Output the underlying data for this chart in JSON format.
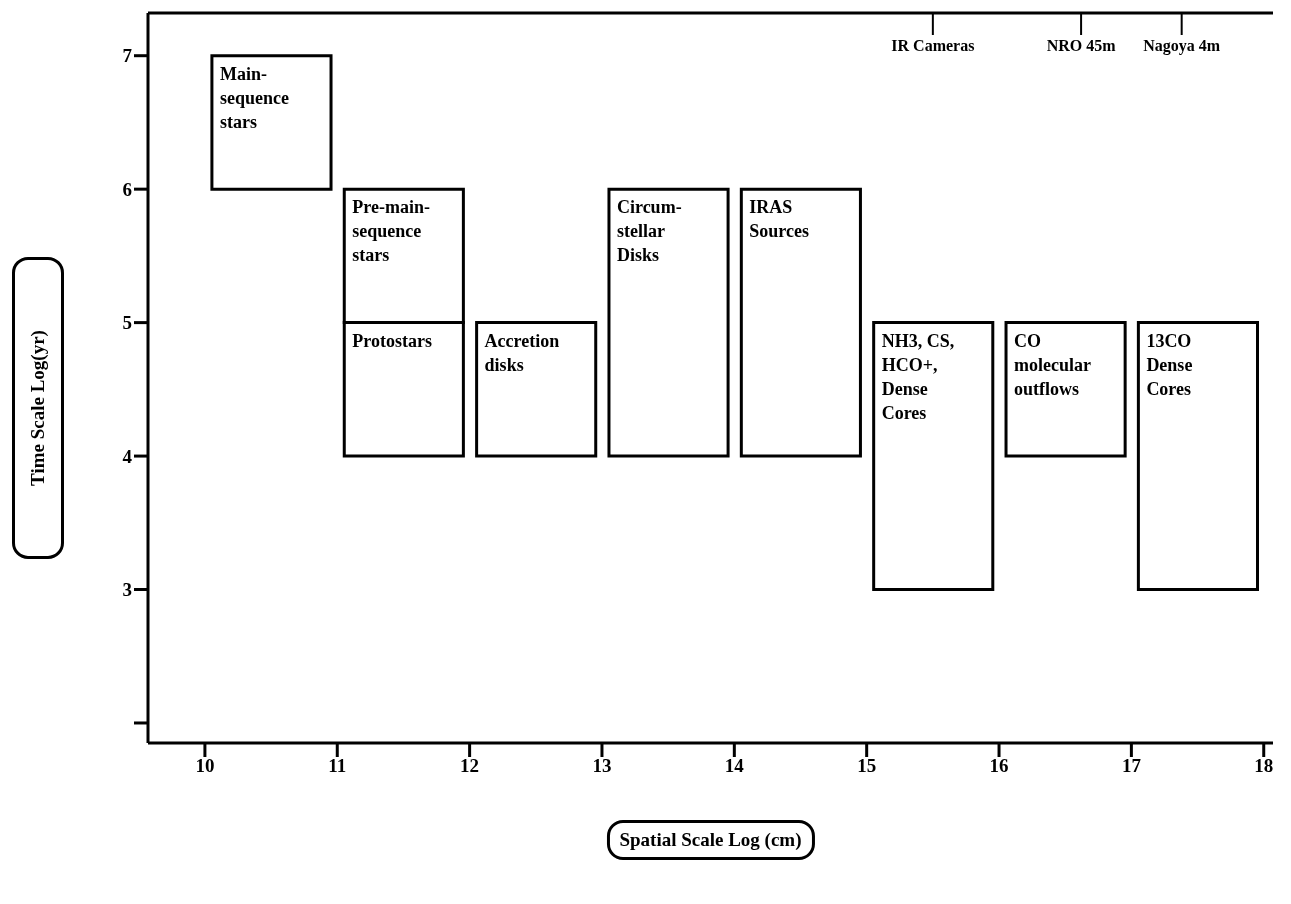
{
  "chart_data": {
    "type": "bar",
    "xlabel": "Spatial Scale  Log (cm)",
    "ylabel": "Time Scale Log(yr)",
    "x": [
      10.5,
      11.5,
      12.5,
      13.5,
      14.5,
      15.5,
      16.5,
      17.5
    ],
    "series": [
      {
        "name": "Main-sequence stars",
        "color": "#000000",
        "values": [
          1,
          null,
          null,
          null,
          null,
          null,
          null,
          null
        ],
        "base": [
          6,
          null,
          null,
          null,
          null,
          null,
          null,
          null
        ]
      },
      {
        "name": "Pre-main-sequence stars",
        "color": "#000000",
        "values": [
          null,
          1,
          null,
          null,
          null,
          null,
          null,
          null
        ],
        "base": [
          null,
          5,
          null,
          null,
          null,
          null,
          null,
          null
        ]
      },
      {
        "name": "Protostars",
        "color": "#000000",
        "values": [
          null,
          1,
          null,
          null,
          null,
          null,
          null,
          null
        ],
        "base": [
          null,
          4,
          null,
          null,
          null,
          null,
          null,
          null
        ]
      },
      {
        "name": "Accretion disks",
        "color": "#000000",
        "values": [
          null,
          null,
          1,
          null,
          null,
          null,
          null,
          null
        ],
        "base": [
          null,
          null,
          4,
          null,
          null,
          null,
          null,
          null
        ]
      },
      {
        "name": "Circum-stellar Disks",
        "color": "#000000",
        "values": [
          null,
          null,
          null,
          2,
          null,
          null,
          null,
          null
        ],
        "base": [
          null,
          null,
          null,
          4,
          null,
          null,
          null,
          null
        ]
      },
      {
        "name": "IRAS Sources",
        "color": "#000000",
        "values": [
          null,
          null,
          null,
          null,
          2,
          null,
          null,
          null
        ],
        "base": [
          null,
          null,
          null,
          null,
          4,
          null,
          null,
          null
        ]
      },
      {
        "name": "NH3, CS, HCO+, Dense Cores",
        "color": "#000000",
        "values": [
          null,
          null,
          null,
          null,
          null,
          2,
          null,
          null
        ],
        "base": [
          null,
          null,
          null,
          null,
          null,
          3,
          null,
          null
        ]
      },
      {
        "name": "CO molecular outflows",
        "color": "#000000",
        "values": [
          null,
          null,
          null,
          null,
          null,
          null,
          1,
          null
        ],
        "base": [
          null,
          null,
          null,
          null,
          null,
          null,
          4,
          null
        ]
      },
      {
        "name": "13CO Dense Cores",
        "color": "#000000",
        "values": [
          null,
          null,
          null,
          null,
          null,
          null,
          null,
          2
        ],
        "base": [
          null,
          null,
          null,
          null,
          null,
          null,
          null,
          3
        ]
      }
    ],
    "xlim": [
      9.57,
      18.07
    ],
    "xticks": [
      10,
      11,
      12,
      13,
      14,
      15,
      16,
      17,
      18
    ],
    "ylim": [
      1.85,
      7.32
    ],
    "yticks": [
      {
        "value": 2,
        "label": null
      },
      3,
      4,
      5,
      6,
      7
    ],
    "ref_lines": [
      {
        "axis": "x",
        "value": 15.5,
        "label": "IR Cameras"
      },
      {
        "axis": "x",
        "value": 16.62,
        "label": "NRO 45m"
      },
      {
        "axis": "x",
        "value": 17.38,
        "label": "Nagoya 4m"
      }
    ]
  }
}
